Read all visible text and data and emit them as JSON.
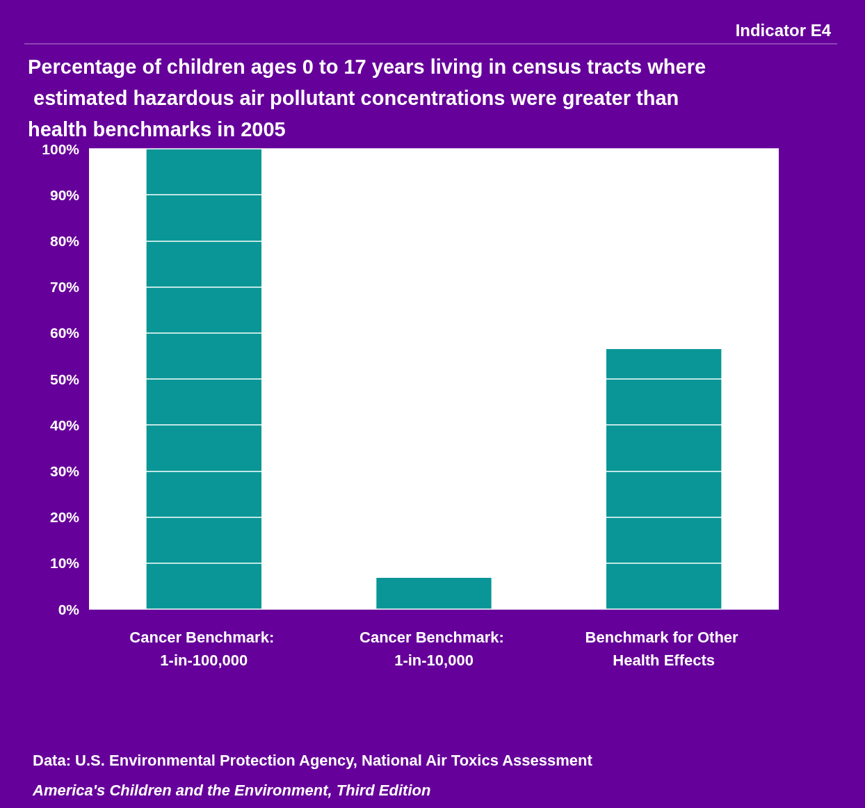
{
  "chart_data": {
    "type": "bar",
    "title": "Percentage of children ages 0 to 17 years living in census tracts where estimated hazardous air pollutant concentrations were greater than health benchmarks in 2005",
    "subtitle": "Indicator E4",
    "categories": [
      "Cancer Benchmark: 1-in-100,000",
      "Cancer Benchmark: 1-in-10,000",
      "Benchmark for Other Health Effects"
    ],
    "values": [
      100,
      6.8,
      56.5
    ],
    "color": "#0a9696",
    "ylim": [
      0,
      100
    ],
    "yticks": [
      {
        "value": 0,
        "label": "0%"
      },
      {
        "value": 10,
        "label": "10%"
      },
      {
        "value": 20,
        "label": "20%"
      },
      {
        "value": 30,
        "label": "30%"
      },
      {
        "value": 40,
        "label": "40%"
      },
      {
        "value": 50,
        "label": "50%"
      },
      {
        "value": 60,
        "label": "60%"
      },
      {
        "value": 70,
        "label": "70%"
      },
      {
        "value": 80,
        "label": "80%"
      },
      {
        "value": 90,
        "label": "90%"
      },
      {
        "value": 100,
        "label": "100%"
      }
    ],
    "grid": "y",
    "annotations": [
      "Data: U.S. Environmental Protection Agency, National Air Toxics Assessment",
      "America's Children and the Environment, Third Edition"
    ]
  }
}
